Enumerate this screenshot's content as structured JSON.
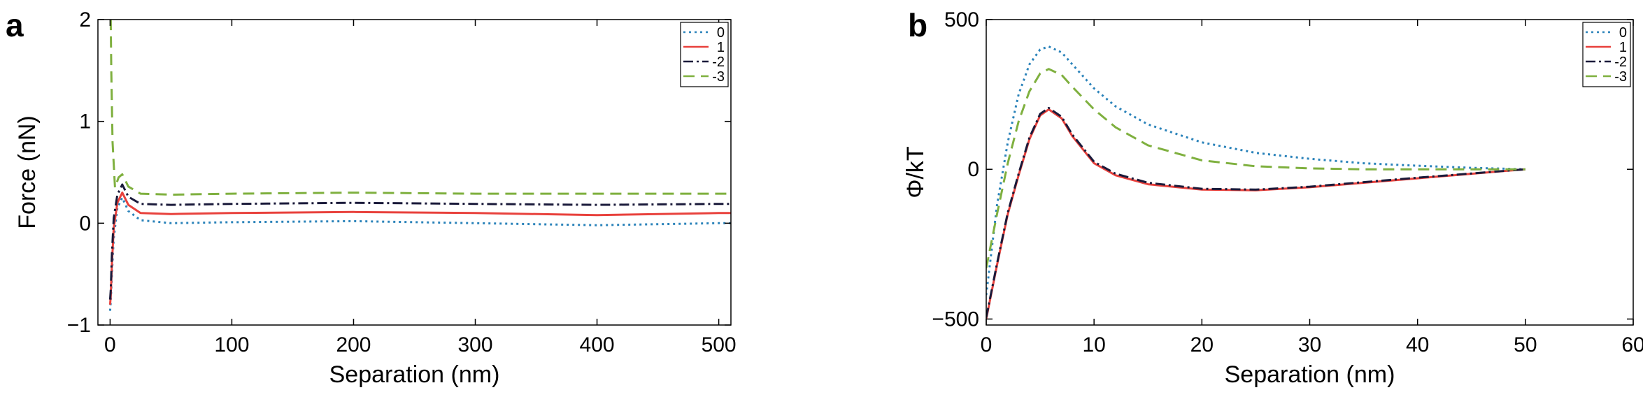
{
  "chart_data": [
    {
      "panel": "a",
      "type": "line",
      "title": "",
      "xlabel": "Separation (nm)",
      "ylabel": "Force (nN)",
      "xlim": [
        -10,
        510
      ],
      "ylim": [
        -1,
        2
      ],
      "xticks": [
        0,
        100,
        200,
        300,
        400,
        500
      ],
      "yticks": [
        -1,
        0,
        1,
        2
      ],
      "grid": false,
      "legend": "top-right",
      "series": [
        {
          "name": "0",
          "color": "#2b83ba",
          "dash": "3,5",
          "x": [
            0,
            0.5,
            1.5,
            3,
            6,
            10,
            15,
            25,
            50,
            100,
            200,
            300,
            400,
            500,
            510
          ],
          "y": [
            -0.86,
            -0.78,
            -0.5,
            -0.15,
            0.15,
            0.25,
            0.12,
            0.03,
            0.0,
            0.01,
            0.02,
            0.0,
            -0.02,
            0.0,
            0.0
          ]
        },
        {
          "name": "1",
          "color": "#e8413c",
          "dash": "",
          "x": [
            0,
            0.5,
            1.5,
            3,
            6,
            10,
            15,
            25,
            50,
            100,
            200,
            300,
            400,
            500,
            510
          ],
          "y": [
            -0.8,
            -0.72,
            -0.4,
            -0.05,
            0.2,
            0.3,
            0.18,
            0.1,
            0.09,
            0.1,
            0.11,
            0.1,
            0.08,
            0.1,
            0.1
          ]
        },
        {
          "name": "-2",
          "color": "#1a1a3a",
          "dash": "14,5,3,5",
          "x": [
            0,
            0.5,
            1.5,
            3,
            6,
            10,
            15,
            25,
            50,
            100,
            200,
            300,
            400,
            500,
            510
          ],
          "y": [
            -0.75,
            -0.66,
            -0.3,
            0.05,
            0.28,
            0.38,
            0.26,
            0.19,
            0.18,
            0.19,
            0.2,
            0.19,
            0.18,
            0.19,
            0.19
          ]
        },
        {
          "name": "-3",
          "color": "#7fb03f",
          "dash": "16,9",
          "x": [
            0,
            0.5,
            1,
            2,
            4,
            7,
            10,
            15,
            25,
            50,
            100,
            200,
            300,
            400,
            500,
            510
          ],
          "y": [
            2.0,
            2.0,
            1.5,
            0.8,
            0.35,
            0.45,
            0.48,
            0.36,
            0.29,
            0.28,
            0.29,
            0.3,
            0.29,
            0.29,
            0.29,
            0.29
          ]
        }
      ]
    },
    {
      "panel": "b",
      "type": "line",
      "title": "",
      "xlabel": "Separation (nm)",
      "ylabel": "Φ/kT",
      "xlim": [
        0,
        60
      ],
      "ylim": [
        -520,
        500
      ],
      "xticks": [
        0,
        10,
        20,
        30,
        40,
        50,
        60
      ],
      "yticks": [
        -500,
        0,
        500
      ],
      "grid": false,
      "legend": "top-right",
      "series": [
        {
          "name": "0",
          "color": "#2b83ba",
          "dash": "3,5",
          "x": [
            0,
            1,
            2,
            3,
            4,
            5,
            5.8,
            7,
            8,
            10,
            12,
            15,
            20,
            25,
            30,
            35,
            40,
            45,
            50
          ],
          "y": [
            -420,
            -120,
            90,
            250,
            350,
            400,
            410,
            390,
            350,
            270,
            210,
            150,
            90,
            55,
            35,
            20,
            12,
            5,
            0
          ]
        },
        {
          "name": "1",
          "color": "#e8413c",
          "dash": "",
          "x": [
            0,
            1,
            2,
            3,
            4,
            5,
            5.8,
            7,
            8,
            10,
            12,
            15,
            20,
            25,
            30,
            35,
            40,
            45,
            50
          ],
          "y": [
            -500,
            -320,
            -150,
            -20,
            100,
            180,
            200,
            170,
            110,
            20,
            -20,
            -50,
            -68,
            -70,
            -60,
            -45,
            -30,
            -15,
            0
          ]
        },
        {
          "name": "-2",
          "color": "#1a1a3a",
          "dash": "14,5,3,5",
          "x": [
            0,
            1,
            2,
            3,
            4,
            5,
            5.8,
            7,
            8,
            10,
            12,
            15,
            20,
            25,
            30,
            35,
            40,
            45,
            50
          ],
          "y": [
            -495,
            -315,
            -145,
            -15,
            105,
            185,
            205,
            175,
            115,
            25,
            -15,
            -45,
            -65,
            -68,
            -58,
            -43,
            -28,
            -14,
            0
          ]
        },
        {
          "name": "-3",
          "color": "#7fb03f",
          "dash": "16,9",
          "x": [
            0,
            1,
            2,
            3,
            4,
            5,
            5.8,
            7,
            8,
            10,
            12,
            15,
            20,
            25,
            30,
            35,
            40,
            45,
            50
          ],
          "y": [
            -330,
            -150,
            20,
            160,
            260,
            320,
            335,
            315,
            275,
            200,
            140,
            80,
            30,
            10,
            3,
            0,
            0,
            0,
            0
          ]
        }
      ]
    }
  ]
}
